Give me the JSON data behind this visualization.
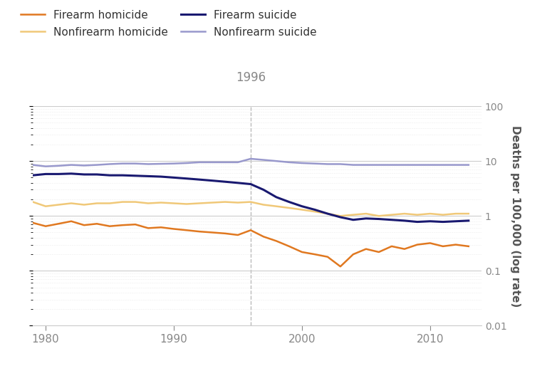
{
  "years": [
    1979,
    1980,
    1981,
    1982,
    1983,
    1984,
    1985,
    1986,
    1987,
    1988,
    1989,
    1990,
    1991,
    1992,
    1993,
    1994,
    1995,
    1996,
    1997,
    1998,
    1999,
    2000,
    2001,
    2002,
    2003,
    2004,
    2005,
    2006,
    2007,
    2008,
    2009,
    2010,
    2011,
    2012,
    2013
  ],
  "firearm_homicide": [
    0.75,
    0.65,
    0.72,
    0.8,
    0.68,
    0.72,
    0.65,
    0.68,
    0.7,
    0.6,
    0.62,
    0.58,
    0.55,
    0.52,
    0.5,
    0.48,
    0.45,
    0.55,
    0.42,
    0.35,
    0.28,
    0.22,
    0.2,
    0.18,
    0.12,
    0.2,
    0.25,
    0.22,
    0.28,
    0.25,
    0.3,
    0.32,
    0.28,
    0.3,
    0.28
  ],
  "nonfirearm_homicide": [
    1.8,
    1.5,
    1.6,
    1.7,
    1.6,
    1.7,
    1.7,
    1.8,
    1.8,
    1.7,
    1.75,
    1.7,
    1.65,
    1.7,
    1.75,
    1.8,
    1.75,
    1.8,
    1.6,
    1.5,
    1.4,
    1.3,
    1.2,
    1.1,
    1.0,
    1.05,
    1.1,
    1.0,
    1.05,
    1.1,
    1.05,
    1.1,
    1.05,
    1.1,
    1.1
  ],
  "firearm_suicide": [
    5.5,
    5.8,
    5.8,
    5.9,
    5.7,
    5.7,
    5.5,
    5.5,
    5.4,
    5.3,
    5.2,
    5.0,
    4.8,
    4.6,
    4.4,
    4.2,
    4.0,
    3.8,
    3.0,
    2.2,
    1.8,
    1.5,
    1.3,
    1.1,
    0.95,
    0.85,
    0.9,
    0.88,
    0.85,
    0.82,
    0.78,
    0.8,
    0.78,
    0.8,
    0.82
  ],
  "nonfirearm_suicide": [
    8.5,
    8.0,
    8.2,
    8.5,
    8.3,
    8.5,
    8.8,
    9.0,
    9.0,
    8.8,
    8.9,
    9.0,
    9.2,
    9.5,
    9.5,
    9.5,
    9.5,
    11.0,
    10.5,
    10.0,
    9.5,
    9.2,
    9.0,
    8.8,
    8.8,
    8.5,
    8.5,
    8.5,
    8.5,
    8.5,
    8.5,
    8.5,
    8.5,
    8.5,
    8.5
  ],
  "vline_year": 1996,
  "firearm_homicide_color": "#E07820",
  "nonfirearm_homicide_color": "#F0C878",
  "firearm_suicide_color": "#191970",
  "nonfirearm_suicide_color": "#9898CC",
  "ylabel": "Deaths per 100,000 (log rate)",
  "ylim_min": 0.01,
  "ylim_max": 100,
  "xlim_min": 1979,
  "xlim_max": 2014,
  "vline_label": "1996",
  "legend_labels": [
    "Firearm homicide",
    "Nonfirearm homicide",
    "Firearm suicide",
    "Nonfirearm suicide"
  ],
  "background_color": "#ffffff",
  "major_grid_color": "#cccccc",
  "minor_grid_color": "#dddddd",
  "vline_color": "#bbbbbb",
  "tick_label_color": "#888888",
  "axis_label_color": "#555555",
  "text_color": "#333333"
}
